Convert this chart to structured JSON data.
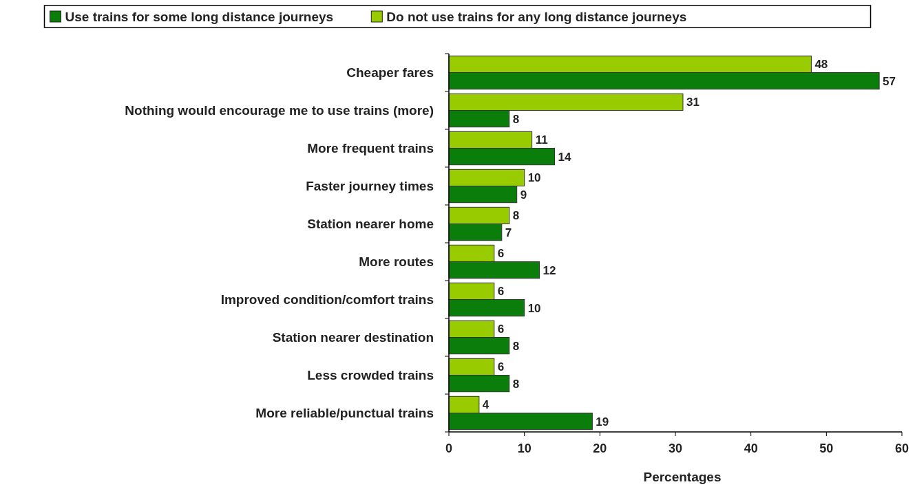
{
  "chart_data": {
    "type": "bar",
    "orientation": "horizontal",
    "xlabel": "Percentages",
    "categories": [
      "Cheaper fares",
      "Nothing would encourage me to use trains (more)",
      "More frequent trains",
      "Faster journey times",
      "Station nearer home",
      "More routes",
      "Improved condition/comfort trains",
      "Station nearer destination",
      "Less crowded trains",
      "More reliable/punctual trains"
    ],
    "series": [
      {
        "name": "Use trains for some long distance journeys",
        "color": "#0a7d0a",
        "values": [
          57,
          8,
          14,
          9,
          7,
          12,
          10,
          8,
          8,
          19
        ]
      },
      {
        "name": "Do not use trains for any long distance journeys",
        "color": "#99cc00",
        "values": [
          48,
          31,
          11,
          10,
          8,
          6,
          6,
          6,
          6,
          4
        ]
      }
    ],
    "xlim": [
      0,
      60
    ],
    "xticks": [
      0,
      10,
      20,
      30,
      40,
      50,
      60
    ],
    "data_labels": true,
    "legend": "top",
    "grid": false
  }
}
